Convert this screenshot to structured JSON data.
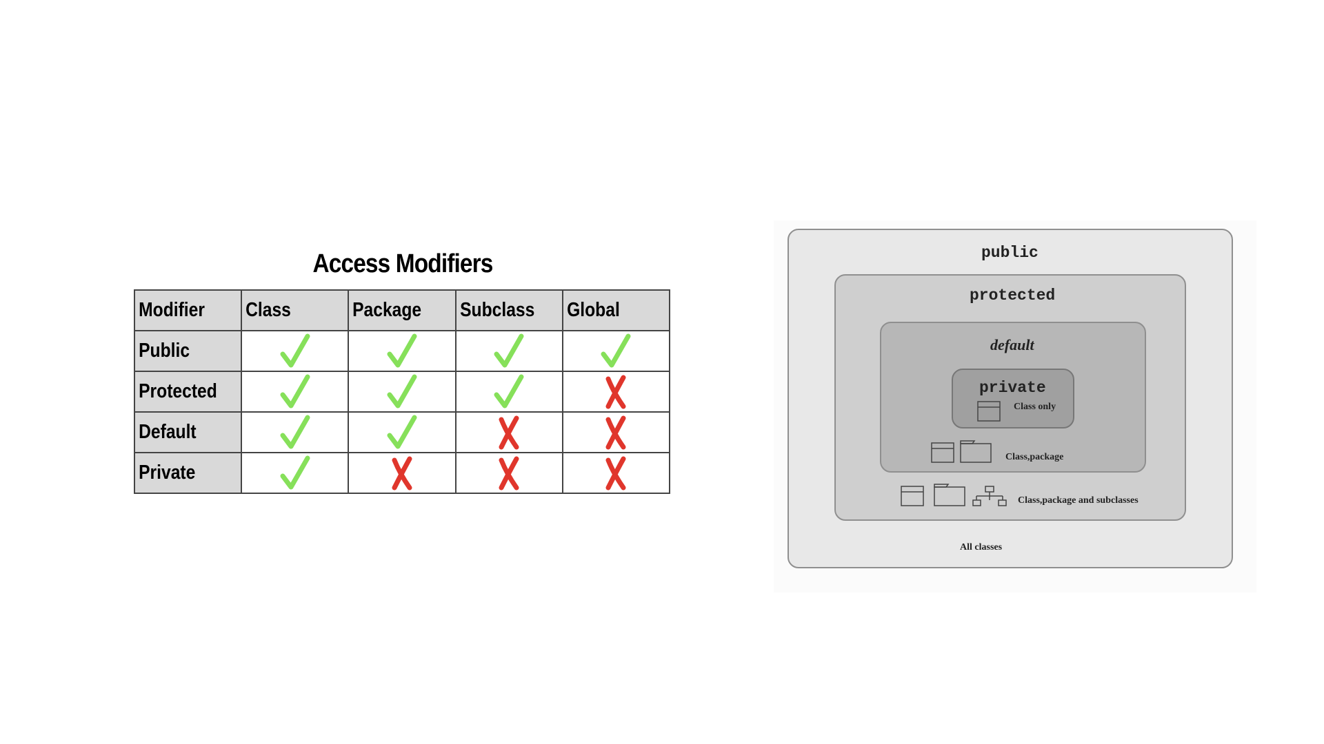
{
  "table": {
    "title": "Access Modifiers",
    "headers": [
      "Modifier",
      "Class",
      "Package",
      "Subclass",
      "Global"
    ],
    "rows": [
      {
        "label": "Public",
        "access": [
          true,
          true,
          true,
          true
        ]
      },
      {
        "label": "Protected",
        "access": [
          true,
          true,
          true,
          false
        ]
      },
      {
        "label": "Default",
        "access": [
          true,
          true,
          false,
          false
        ]
      },
      {
        "label": "Private",
        "access": [
          true,
          false,
          false,
          false
        ]
      }
    ],
    "colors": {
      "allowed": "#86e05a",
      "denied": "#e0362c",
      "header_bg": "#d9d9d9"
    }
  },
  "diagram": {
    "public_label": "public",
    "protected_label": "protected",
    "default_label": "default",
    "private_label": "private",
    "class_only_label": "Class only",
    "class_package_label": "Class,package",
    "class_package_subclasses_label": "Class,package and subclasses",
    "all_classes_label": "All classes",
    "icons": [
      "class-icon",
      "package-folder-icon",
      "class-hierarchy-icon"
    ]
  }
}
